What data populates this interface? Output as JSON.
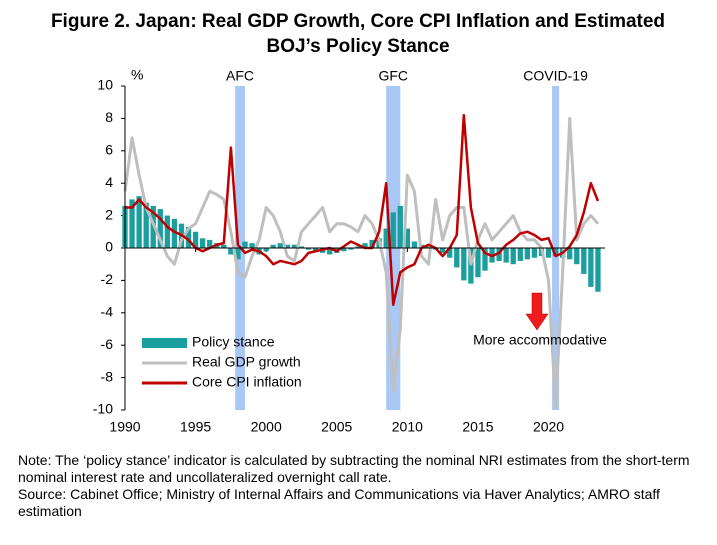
{
  "chart_data": {
    "type": "bar-line",
    "title": [
      "Figure 2. Japan: Real GDP Growth, Core CPI Inflation and Estimated",
      "BOJ’s Policy Stance"
    ],
    "y_unit": "%",
    "x": [
      1990,
      1990.5,
      1991,
      1991.5,
      1992,
      1992.5,
      1993,
      1993.5,
      1994,
      1994.5,
      1995,
      1995.5,
      1996,
      1996.5,
      1997,
      1997.5,
      1998,
      1998.5,
      1999,
      1999.5,
      2000,
      2000.5,
      2001,
      2001.5,
      2002,
      2002.5,
      2003,
      2003.5,
      2004,
      2004.5,
      2005,
      2005.5,
      2006,
      2006.5,
      2007,
      2007.5,
      2008,
      2008.5,
      2009,
      2009.5,
      2010,
      2010.5,
      2011,
      2011.5,
      2012,
      2012.5,
      2013,
      2013.5,
      2014,
      2014.5,
      2015,
      2015.5,
      2016,
      2016.5,
      2017,
      2017.5,
      2018,
      2018.5,
      2019,
      2019.5,
      2020,
      2020.5,
      2021,
      2021.5,
      2022,
      2022.5,
      2023,
      2023.5
    ],
    "series": [
      {
        "name": "Policy stance",
        "kind": "bar",
        "color": "#1a9e9e",
        "values": [
          2.6,
          3.0,
          3.2,
          2.8,
          2.6,
          2.4,
          2.0,
          1.8,
          1.5,
          1.3,
          1.0,
          0.6,
          0.5,
          0.3,
          0.2,
          -0.4,
          -0.7,
          0.4,
          0.3,
          -0.4,
          -0.2,
          0.2,
          0.3,
          0.2,
          0.2,
          0.1,
          -0.1,
          -0.2,
          -0.3,
          -0.4,
          -0.3,
          -0.2,
          -0.1,
          0.1,
          0.3,
          0.5,
          0.6,
          1.2,
          2.2,
          2.6,
          1.2,
          0.4,
          0.2,
          0.1,
          -0.1,
          -0.3,
          -0.6,
          -1.2,
          -2.0,
          -2.2,
          -1.8,
          -1.4,
          -0.9,
          -0.8,
          -0.9,
          -1.0,
          -0.8,
          -0.7,
          -0.6,
          -0.5,
          -0.6,
          -0.5,
          -0.6,
          -0.7,
          -1.0,
          -1.6,
          -2.4,
          -2.7
        ]
      },
      {
        "name": "Real GDP growth",
        "kind": "line",
        "color": "#bfbfbf",
        "values": [
          3.5,
          6.8,
          4.5,
          2.5,
          1.5,
          0.5,
          -0.5,
          -1.0,
          0.5,
          1.2,
          1.5,
          2.5,
          3.5,
          3.3,
          3.0,
          1.0,
          -1.5,
          -1.8,
          -0.5,
          0.5,
          2.5,
          2.0,
          1.0,
          -0.5,
          -0.8,
          1.0,
          1.5,
          2.0,
          2.5,
          1.0,
          1.5,
          1.5,
          1.3,
          1.0,
          2.0,
          1.5,
          0.5,
          -1.5,
          -8.8,
          -5.0,
          4.5,
          3.5,
          -0.5,
          -1.0,
          3.0,
          0.5,
          2.0,
          2.5,
          2.5,
          -1.0,
          0.5,
          1.5,
          0.5,
          1.0,
          1.5,
          2.0,
          1.0,
          0.5,
          0.5,
          0.0,
          -2.0,
          -9.8,
          -1.5,
          8.0,
          0.5,
          1.5,
          2.0,
          1.5
        ]
      },
      {
        "name": "Core CPI inflation",
        "kind": "line",
        "color": "#c00000",
        "values": [
          2.5,
          2.5,
          3.0,
          2.5,
          2.2,
          1.8,
          1.3,
          1.0,
          0.8,
          0.5,
          0.0,
          -0.2,
          0.0,
          0.2,
          0.3,
          6.2,
          0.2,
          -0.3,
          -0.1,
          -0.2,
          -0.5,
          -1.0,
          -0.8,
          -0.9,
          -1.0,
          -0.8,
          -0.3,
          -0.2,
          -0.1,
          0.0,
          -0.2,
          0.1,
          0.4,
          0.2,
          0.0,
          0.0,
          1.0,
          4.0,
          -3.5,
          -1.5,
          -1.2,
          -1.0,
          0.0,
          0.2,
          0.0,
          -0.5,
          0.0,
          0.8,
          8.2,
          2.5,
          0.3,
          -0.3,
          -0.5,
          -0.3,
          0.2,
          0.5,
          0.9,
          1.0,
          0.8,
          0.5,
          0.6,
          -0.5,
          -0.3,
          0.1,
          0.8,
          2.2,
          4.0,
          2.9
        ]
      }
    ],
    "shaded_periods": [
      {
        "label": "AFC",
        "start": 1997.8,
        "end": 1998.5
      },
      {
        "label": "GFC",
        "start": 2008.5,
        "end": 2009.5
      },
      {
        "label": "COVID-19",
        "start": 2020.25,
        "end": 2020.75
      }
    ],
    "shade_color": "#a9c8f5",
    "annotation": "More accommodative",
    "xlim": [
      1990,
      2024
    ],
    "xticks": [
      1990,
      1995,
      2000,
      2005,
      2010,
      2015,
      2020
    ],
    "ylim": [
      -10,
      10
    ],
    "yticks": [
      -10,
      -8,
      -6,
      -4,
      -2,
      0,
      2,
      4,
      6,
      8,
      10
    ],
    "legend": "lower left"
  },
  "notes": {
    "note": "Note: The ‘policy stance’ indicator is calculated by subtracting the nominal NRI estimates from the short-term nominal interest rate and uncollateralized overnight call rate.",
    "source": "Source: Cabinet Office; Ministry of Internal Affairs and Communications via Haver Analytics; AMRO staff estimation"
  }
}
